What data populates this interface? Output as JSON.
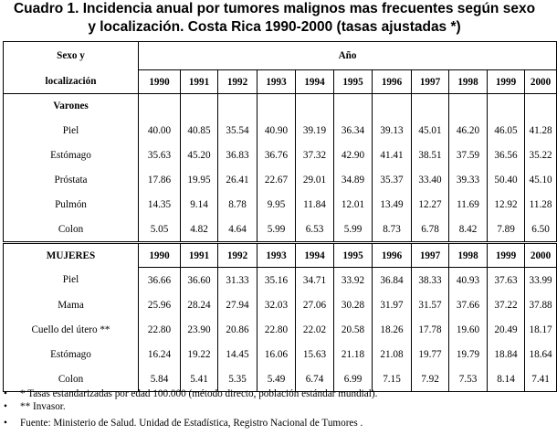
{
  "title_line1": "Cuadro 1. Incidencia anual por tumores malignos mas frecuentes según sexo",
  "title_line2": "y localización. Costa Rica 1990-2000 (tasas ajustadas *)",
  "header": {
    "col1_line1": "Sexo y",
    "col1_line2": "localización",
    "year_group": "Año",
    "years": [
      "1990",
      "1991",
      "1992",
      "1993",
      "1994",
      "1995",
      "1996",
      "1997",
      "1998",
      "1999",
      "2000"
    ]
  },
  "sections": [
    {
      "label": "Varones",
      "show_years": false,
      "rows": [
        {
          "name": "Piel",
          "values": [
            "40.00",
            "40.85",
            "35.54",
            "40.90",
            "39.19",
            "36.34",
            "39.13",
            "45.01",
            "46.20",
            "46.05",
            "41.28"
          ]
        },
        {
          "name": "Estómago",
          "values": [
            "35.63",
            "45.20",
            "36.83",
            "36.76",
            "37.32",
            "42.90",
            "41.41",
            "38.51",
            "37.59",
            "36.56",
            "35.22"
          ]
        },
        {
          "name": "Próstata",
          "values": [
            "17.86",
            "19.95",
            "26.41",
            "22.67",
            "29.01",
            "34.89",
            "35.37",
            "33.40",
            "39.33",
            "50.40",
            "45.10"
          ]
        },
        {
          "name": "Pulmón",
          "values": [
            "14.35",
            "9.14",
            "8.78",
            "9.95",
            "11.84",
            "12.01",
            "13.49",
            "12.27",
            "11.69",
            "12.92",
            "11.28"
          ]
        },
        {
          "name": "Colon",
          "values": [
            "5.05",
            "4.82",
            "4.64",
            "5.99",
            "6.53",
            "5.99",
            "8.73",
            "6.78",
            "8.42",
            "7.89",
            "6.50"
          ]
        }
      ]
    },
    {
      "label": "MUJERES",
      "show_years": true,
      "rows": [
        {
          "name": "Piel",
          "values": [
            "36.66",
            "36.60",
            "31.33",
            "35.16",
            "34.71",
            "33.92",
            "36.84",
            "38.33",
            "40.93",
            "37.63",
            "33.99"
          ]
        },
        {
          "name": "Mama",
          "values": [
            "25.96",
            "28.24",
            "27.94",
            "32.03",
            "27.06",
            "30.28",
            "31.97",
            "31.57",
            "37.66",
            "37.22",
            "37.88"
          ]
        },
        {
          "name": "Cuello del  útero **",
          "values": [
            "22.80",
            "23.90",
            "20.86",
            "22.80",
            "22.02",
            "20.58",
            "18.26",
            "17.78",
            "19.60",
            "20.49",
            "18.17"
          ]
        },
        {
          "name": "Estómago",
          "values": [
            "16.24",
            "19.22",
            "14.45",
            "16.06",
            "15.63",
            "21.18",
            "21.08",
            "19.77",
            "19.79",
            "18.84",
            "18.64"
          ]
        },
        {
          "name": "Colon",
          "values": [
            "5.84",
            "5.41",
            "5.35",
            "5.49",
            "6.74",
            "6.99",
            "7.15",
            "7.92",
            "7.53",
            "8.14",
            "7.41"
          ]
        }
      ]
    }
  ],
  "notes": [
    "* Tasas estandarizadas por edad 100.000 (método directo, población estándar mundial).",
    "** Invasor."
  ],
  "note_bullet": "•",
  "source": "Fuente: Ministerio de Salud. Unidad de Estadística, Registro Nacional de Tumores ."
}
